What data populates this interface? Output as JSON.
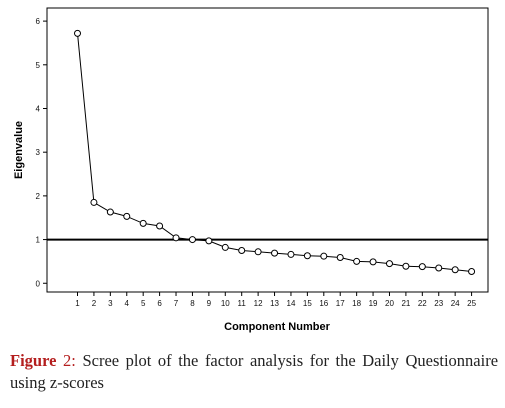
{
  "chart_data": {
    "type": "line",
    "xlabel": "Component Number",
    "ylabel": "Eigenvalue",
    "x": [
      1,
      2,
      3,
      4,
      5,
      6,
      7,
      8,
      9,
      10,
      11,
      12,
      13,
      14,
      15,
      16,
      17,
      18,
      19,
      20,
      21,
      22,
      23,
      24,
      25
    ],
    "y": [
      5.72,
      1.85,
      1.63,
      1.53,
      1.37,
      1.31,
      1.04,
      1.0,
      0.97,
      0.82,
      0.75,
      0.72,
      0.69,
      0.66,
      0.63,
      0.62,
      0.59,
      0.5,
      0.49,
      0.45,
      0.39,
      0.38,
      0.35,
      0.31,
      0.27
    ],
    "xticks": [
      "1",
      "2",
      "3",
      "4",
      "5",
      "6",
      "7",
      "8",
      "9",
      "10",
      "11",
      "12",
      "13",
      "14",
      "15",
      "16",
      "17",
      "18",
      "19",
      "20",
      "21",
      "22",
      "23",
      "24",
      "25"
    ],
    "yticks": [
      "0",
      "1",
      "2",
      "3",
      "4",
      "5",
      "6"
    ],
    "ylim": [
      -0.2,
      6.3
    ],
    "reference_line": 1,
    "marker": "open-circle",
    "grid": false
  },
  "caption": {
    "figure_word": "Figure",
    "figure_number": "2:",
    "text": "Scree plot of the factor analysis for the Daily Questionnaire using z-scores"
  }
}
